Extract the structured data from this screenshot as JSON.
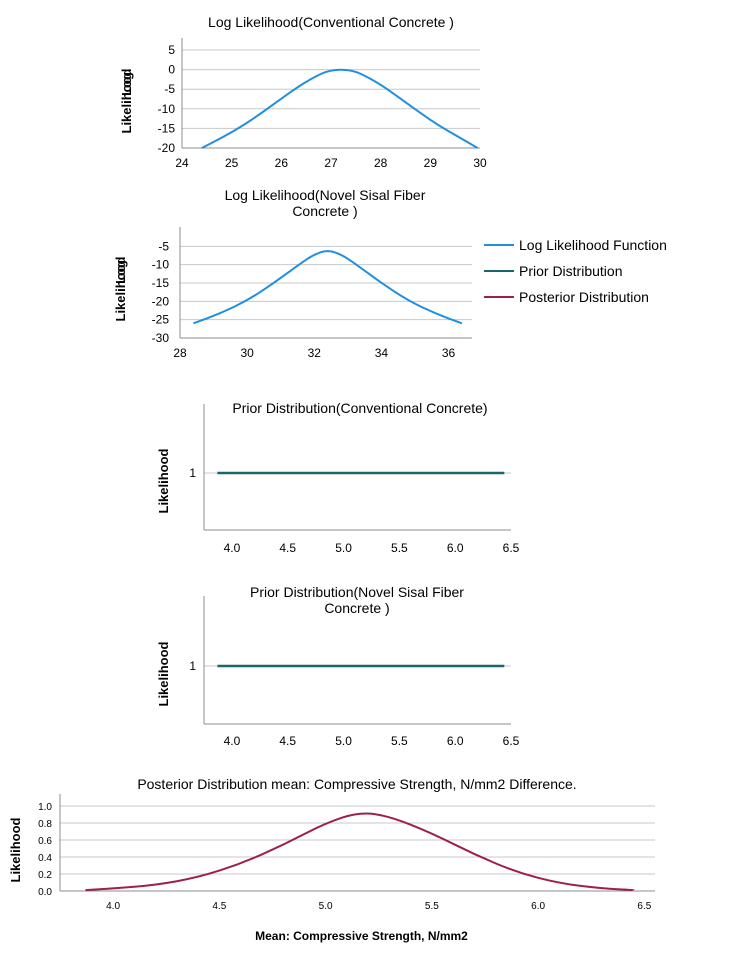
{
  "colors": {
    "log_likelihood": "#1f8fe0",
    "prior": "#19666b",
    "posterior": "#9c1f4f",
    "grid": "#c8c8c8",
    "axis": "#8c8c8c"
  },
  "legend": {
    "items": [
      {
        "label": "Log Likelihood Function",
        "color": "#1f8fe0"
      },
      {
        "label": "Prior Distribution",
        "color": "#19666b"
      },
      {
        "label": "Posterior Distribution",
        "color": "#9c1f4f"
      }
    ]
  },
  "chart_data": [
    {
      "type": "line",
      "title": "Log Likelihood(Conventional Concrete )",
      "ylabel_lines": [
        "Log",
        "Likelihood"
      ],
      "xlabel": "",
      "xlim": [
        24,
        30
      ],
      "ylim": [
        -20,
        5
      ],
      "x_ticks": [
        "24",
        "25",
        "26",
        "27",
        "28",
        "29",
        "30"
      ],
      "y_ticks": [
        "5",
        "0",
        "-5",
        "-10",
        "-15",
        "-20"
      ],
      "series": [
        {
          "color": "#1f8fe0",
          "x": [
            24.4,
            24.8,
            25.2,
            25.6,
            26.0,
            26.4,
            26.8,
            27.0,
            27.2,
            27.4,
            27.6,
            28.0,
            28.4,
            28.8,
            29.2,
            29.6,
            29.95
          ],
          "y": [
            -20.0,
            -17.4,
            -14.5,
            -11.1,
            -7.4,
            -3.8,
            -1.0,
            -0.2,
            0.0,
            -0.2,
            -1.0,
            -3.8,
            -7.4,
            -11.1,
            -14.5,
            -17.4,
            -20.0
          ]
        }
      ]
    },
    {
      "type": "line",
      "title": "Log Likelihood(Novel Sisal Fiber Concrete )",
      "title_lines": [
        "Log Likelihood(Novel Sisal Fiber",
        "Concrete )"
      ],
      "ylabel_lines": [
        "Log",
        "Likelihood"
      ],
      "xlabel": "",
      "xlim": [
        28,
        36.7
      ],
      "ylim": [
        -30,
        -3
      ],
      "x_ticks": [
        "28",
        "30",
        "32",
        "34",
        "36"
      ],
      "y_ticks": [
        "-5",
        "-10",
        "-15",
        "-20",
        "-25",
        "-30"
      ],
      "series": [
        {
          "color": "#1f8fe0",
          "x": [
            28.4,
            29.2,
            30.0,
            30.8,
            31.6,
            32.0,
            32.4,
            32.8,
            33.2,
            34.0,
            34.8,
            35.6,
            36.4
          ],
          "y": [
            -26.0,
            -23.3,
            -19.8,
            -15.0,
            -9.6,
            -7.2,
            -6.0,
            -7.2,
            -9.6,
            -15.0,
            -19.8,
            -23.3,
            -26.0
          ]
        }
      ]
    },
    {
      "type": "line",
      "title": "Prior Distribution(Conventional Concrete)",
      "ylabel": "Likelihood",
      "xlabel": "",
      "xlim": [
        3.75,
        6.5
      ],
      "ylim": [
        0.5,
        1.5
      ],
      "x_ticks": [
        "4.0",
        "4.5",
        "5.0",
        "5.5",
        "6.0",
        "6.5"
      ],
      "y_ticks": [
        "1"
      ],
      "series": [
        {
          "color": "#19666b",
          "x": [
            3.87,
            6.44
          ],
          "y": [
            1,
            1
          ]
        }
      ]
    },
    {
      "type": "line",
      "title": "Prior Distribution(Novel Sisal Fiber Concrete )",
      "title_lines": [
        "Prior Distribution(Novel Sisal Fiber",
        "Concrete )"
      ],
      "ylabel": "Likelihood",
      "xlabel": "",
      "xlim": [
        3.75,
        6.5
      ],
      "ylim": [
        0.5,
        1.5
      ],
      "x_ticks": [
        "4.0",
        "4.5",
        "5.0",
        "5.5",
        "6.0",
        "6.5"
      ],
      "y_ticks": [
        "1"
      ],
      "series": [
        {
          "color": "#19666b",
          "x": [
            3.87,
            6.44
          ],
          "y": [
            1,
            1
          ]
        }
      ]
    },
    {
      "type": "line",
      "title": "Posterior Distribution mean: Compressive Strength, N/mm2 Difference.",
      "ylabel": "Likelihood",
      "xlabel": "Mean: Compressive Strength, N/mm2",
      "xlim": [
        3.75,
        6.55
      ],
      "ylim": [
        0,
        1.0
      ],
      "x_ticks": [
        "4.0",
        "4.5",
        "5.0",
        "5.5",
        "6.0",
        "6.5"
      ],
      "y_ticks": [
        "1.0",
        "0.8",
        "0.6",
        "0.4",
        "0.2",
        "0.0"
      ],
      "series": [
        {
          "color": "#9c1f4f",
          "x": [
            3.87,
            4.0,
            4.2,
            4.4,
            4.6,
            4.8,
            5.0,
            5.16,
            5.3,
            5.5,
            5.7,
            5.9,
            6.1,
            6.3,
            6.45
          ],
          "y": [
            0.01,
            0.03,
            0.07,
            0.16,
            0.32,
            0.54,
            0.8,
            0.93,
            0.88,
            0.68,
            0.43,
            0.22,
            0.09,
            0.03,
            0.01
          ]
        }
      ]
    }
  ]
}
